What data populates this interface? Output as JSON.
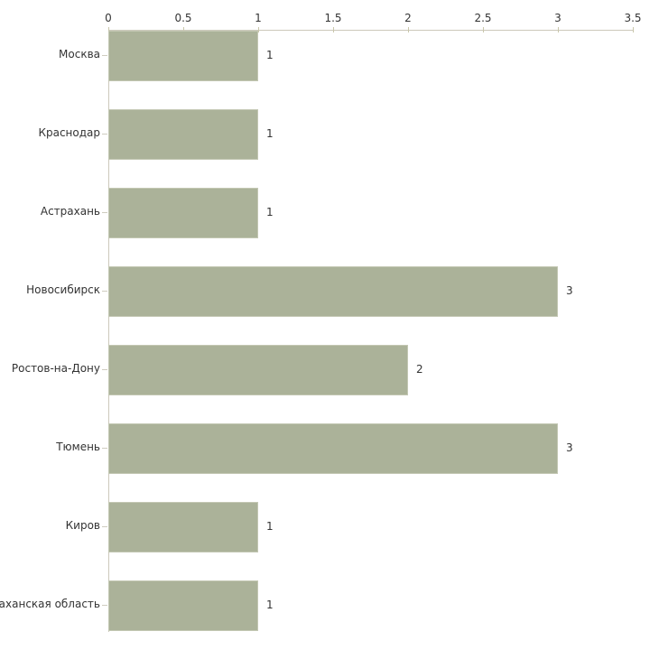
{
  "chart_data": {
    "type": "bar",
    "orientation": "horizontal",
    "title": "",
    "xlabel": "",
    "ylabel": "",
    "categories": [
      "Москва",
      "Краснодар",
      "Астрахань",
      "Новосибирск",
      "Ростов-на-Дону",
      "Тюмень",
      "Киров",
      "Астраханская область"
    ],
    "values": [
      1,
      1,
      1,
      3,
      2,
      3,
      1,
      1
    ],
    "value_labels": [
      "1",
      "1",
      "1",
      "3",
      "2",
      "3",
      "1",
      "1"
    ],
    "x_ticks": [
      {
        "value": 0,
        "label": "0"
      },
      {
        "value": 0.5,
        "label": "0.5"
      },
      {
        "value": 1,
        "label": "1"
      },
      {
        "value": 1.5,
        "label": "1.5"
      },
      {
        "value": 2,
        "label": "2"
      },
      {
        "value": 2.5,
        "label": "2.5"
      },
      {
        "value": 3,
        "label": "3"
      },
      {
        "value": 3.5,
        "label": "3.5"
      }
    ],
    "xlim": [
      0,
      3.5
    ],
    "grid": false,
    "legend": false,
    "axis_position": "top",
    "colors": {
      "bar_fill": "#abb299",
      "bar_outline": "#c3c7b3",
      "axis_line": "#ccc9bb",
      "axis_tick": "#c9c6ab",
      "category_tick": "#cfccc0",
      "text": "#333333",
      "background": "#ffffff"
    }
  }
}
